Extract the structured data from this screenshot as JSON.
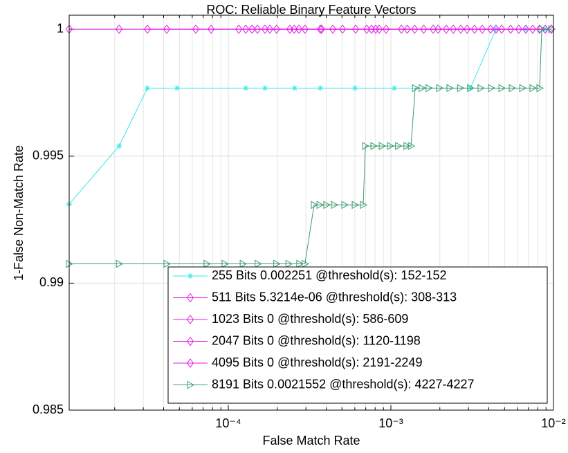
{
  "chart_data": {
    "type": "line",
    "title": "ROC: Reliable Binary Feature Vectors",
    "x_label": "False Match Rate",
    "y_label": "1-False Non-Match Rate",
    "log_x": true,
    "grid": true,
    "legend_position": "southeast",
    "xlim": [
      1.05e-05,
      0.01
    ],
    "xticks": [
      {
        "value": 0.0001,
        "label": "10⁻⁴"
      },
      {
        "value": 0.001,
        "label": "10⁻³"
      },
      {
        "value": 0.01,
        "label": "10⁻²"
      }
    ],
    "ylim": [
      0.985,
      1.00055
    ],
    "yticks": [
      0.985,
      0.99,
      0.995,
      1
    ],
    "series": [
      {
        "name": "255 Bits 0.002251 @threshold(s): 152-152",
        "color": "#33e8e8",
        "marker": "asterisk",
        "x": [
          1.05e-05,
          2.13e-05,
          3.18e-05,
          4.84e-05,
          0.000128,
          0.000168,
          0.000256,
          0.000368,
          0.000601,
          0.00105,
          0.00308,
          0.00443,
          0.00676,
          0.00889
        ],
        "values": [
          0.99311,
          0.9954,
          0.99768,
          0.99768,
          0.99768,
          0.99768,
          0.99768,
          0.99768,
          0.99768,
          0.99768,
          0.99768,
          1,
          1,
          1
        ]
      },
      {
        "name": "511 Bits 5.3214e-06 @threshold(s): 308-313",
        "color": "#e619e6",
        "marker": "diamond",
        "x": [
          1.05e-05,
          2.13e-05,
          4.18e-05,
          6.31e-05,
          0.000116,
          0.000151,
          0.000239,
          0.000368,
          0.000607,
          0.000847,
          0.00126,
          0.00195,
          0.00294,
          0.00443,
          0.00676,
          0.00971
        ],
        "values": [
          1,
          1,
          1,
          1,
          1,
          1,
          1,
          1,
          1,
          1,
          1,
          1,
          1,
          1,
          1,
          1
        ]
      },
      {
        "name": "1023 Bits 0 @threshold(s): 586-609",
        "color": "#e619e6",
        "marker": "diamond",
        "x": [
          3.18e-05,
          7.83e-05,
          0.00014,
          0.00018,
          0.000272,
          0.000439,
          0.00076,
          0.00116,
          0.00182,
          0.00269,
          0.0041,
          0.00612,
          0.00889
        ],
        "values": [
          1,
          1,
          1,
          1,
          1,
          1,
          1,
          1,
          1,
          1,
          1,
          1,
          1
        ]
      },
      {
        "name": "2047 Bits 0 @threshold(s): 1120-1198",
        "color": "#e619e6",
        "marker": "diamond",
        "x": [
          0.000128,
          0.000198,
          0.000296,
          0.000504,
          0.000806,
          0.0014,
          0.00219,
          0.00327,
          0.0048,
          0.00745,
          0.00971
        ],
        "values": [
          1,
          1,
          1,
          1,
          1,
          1,
          1,
          1,
          1,
          1,
          1
        ]
      },
      {
        "name": "4095 Bits 0 @threshold(s): 2191-2249",
        "color": "#e619e6",
        "marker": "diamond",
        "x": [
          0.000168,
          0.000254,
          0.000375,
          0.00071,
          0.000934,
          0.00159,
          0.00242,
          0.00365,
          0.00545,
          0.00822,
          0.00971
        ],
        "values": [
          1,
          1,
          1,
          1,
          1,
          1,
          1,
          1,
          1,
          1,
          1
        ]
      },
      {
        "name": "8191 Bits 0.0021552 @threshold(s): 4227-4227",
        "color": "#3a9a6e",
        "marker": "triangle-right",
        "x": [
          1.05e-05,
          2.13e-05,
          4.18e-05,
          7.38e-05,
          9.52e-05,
          0.000123,
          0.000152,
          0.000198,
          0.000235,
          0.000274,
          0.000296,
          0.000337,
          0.000365,
          0.000402,
          0.000448,
          0.000519,
          0.000601,
          0.000676,
          0.000696,
          0.000783,
          0.000881,
          0.00099,
          0.00111,
          0.00125,
          0.00133,
          0.00141,
          0.00155,
          0.00171,
          0.00199,
          0.0023,
          0.00267,
          0.00308,
          0.00357,
          0.00414,
          0.0048,
          0.00556,
          0.00644,
          0.00745,
          0.00822,
          0.00847,
          0.00971
        ],
        "values": [
          0.99076,
          0.99076,
          0.99076,
          0.99076,
          0.99076,
          0.99076,
          0.99076,
          0.99076,
          0.99076,
          0.99076,
          0.99076,
          0.99308,
          0.99308,
          0.99308,
          0.99308,
          0.99308,
          0.99308,
          0.99308,
          0.9954,
          0.9954,
          0.9954,
          0.9954,
          0.9954,
          0.9954,
          0.9954,
          0.99768,
          0.99768,
          0.99768,
          0.99768,
          0.99768,
          0.99768,
          0.99768,
          0.99768,
          0.99768,
          0.99768,
          0.99768,
          0.99768,
          0.99768,
          0.99768,
          1,
          1
        ]
      }
    ]
  }
}
